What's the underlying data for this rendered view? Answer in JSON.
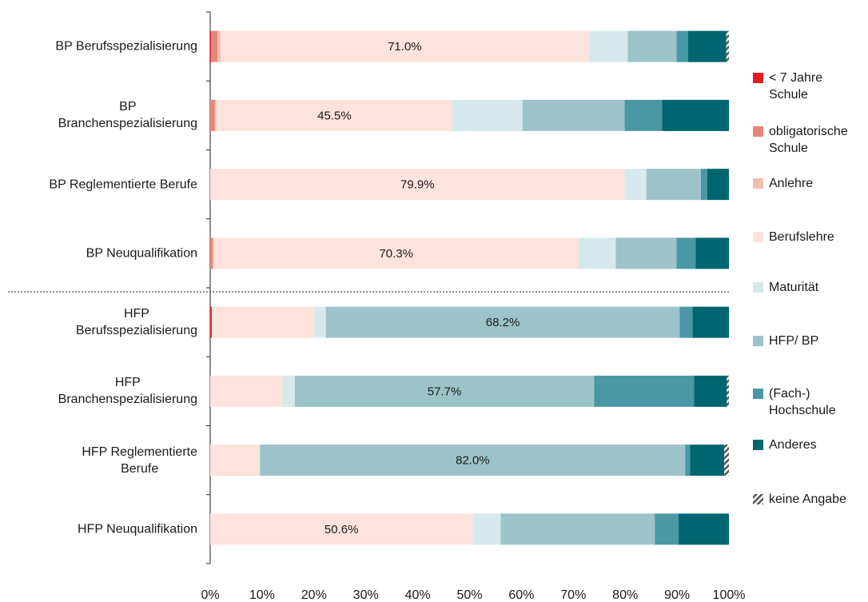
{
  "chart_data": {
    "type": "stacked-barh",
    "categories": [
      "BP Berufsspezialisierung",
      "BP\nBranchenspezialisierung",
      "BP Reglementierte Berufe",
      "BP Neuqualifikation",
      "HFP\nBerufsspezialisierung",
      "HFP\nBranchenspezialisierung",
      "HFP Reglementierte\nBerufe",
      "HFP Neuqualifikation"
    ],
    "series": [
      {
        "name": "< 7 Jahre\nSchule",
        "color": "#e02020",
        "values": [
          0.2,
          0,
          0,
          0,
          0.3,
          0,
          0,
          0
        ]
      },
      {
        "name": "obligatorische\nSchule",
        "color": "#e8867a",
        "values": [
          1.2,
          0.9,
          0,
          0.5,
          0,
          0,
          0,
          0
        ]
      },
      {
        "name": "Anlehre",
        "color": "#f2bfae",
        "values": [
          0.6,
          0.3,
          0,
          0.2,
          0,
          0,
          0,
          0
        ]
      },
      {
        "name": "Berufslehre",
        "color": "#fde3db",
        "values": [
          71.0,
          45.5,
          79.9,
          70.3,
          19.7,
          13.9,
          9.5,
          50.6
        ],
        "value_labels": [
          "71.0%",
          "45.5%",
          "79.9%",
          "70.3%",
          null,
          null,
          null,
          "50.6%"
        ]
      },
      {
        "name": "Maturität",
        "color": "#d6e9ec",
        "values": [
          7.5,
          13.5,
          4.2,
          7.2,
          2.3,
          2.4,
          0.1,
          5.4
        ]
      },
      {
        "name": "HFP/ BP",
        "color": "#9dc3ca",
        "values": [
          9.4,
          19.7,
          10.5,
          11.7,
          68.2,
          57.7,
          82.0,
          29.7
        ],
        "value_labels": [
          null,
          null,
          null,
          null,
          "68.2%",
          "57.7%",
          "82.0%",
          null
        ]
      },
      {
        "name": "(Fach-)\nHochschule",
        "color": "#4a97a5",
        "values": [
          2.2,
          7.2,
          1.2,
          3.7,
          2.5,
          19.3,
          0.9,
          4.6
        ]
      },
      {
        "name": "Anderes",
        "color": "#006570",
        "values": [
          7.4,
          12.9,
          4.2,
          6.4,
          7.0,
          6.3,
          6.6,
          9.7
        ]
      },
      {
        "name": "keine Angabe",
        "color": "hatch",
        "values": [
          0.5,
          0,
          0,
          0,
          0,
          0.4,
          0.9,
          0
        ]
      }
    ],
    "xlim": [
      0,
      100
    ],
    "xticks": [
      {
        "value": 0,
        "label": "0%"
      },
      {
        "value": 10,
        "label": "10%"
      },
      {
        "value": 20,
        "label": "20%"
      },
      {
        "value": 30,
        "label": "30%"
      },
      {
        "value": 40,
        "label": "40%"
      },
      {
        "value": 50,
        "label": "50%"
      },
      {
        "value": 60,
        "label": "60%"
      },
      {
        "value": 70,
        "label": "70%"
      },
      {
        "value": 80,
        "label": "80%"
      },
      {
        "value": 90,
        "label": "90%"
      },
      {
        "value": 100,
        "label": "100%"
      }
    ],
    "legend": "right"
  }
}
